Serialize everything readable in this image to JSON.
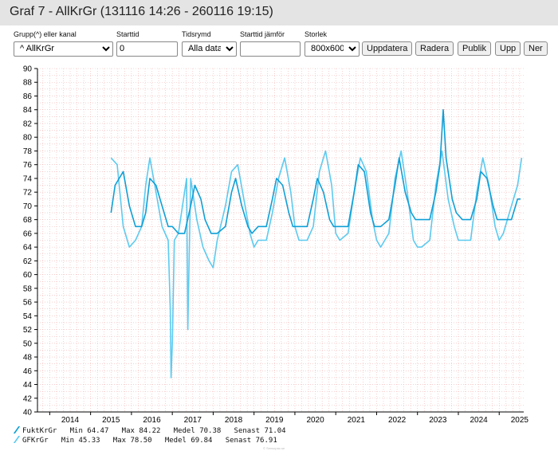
{
  "window": {
    "title": "Graf 7 - AllKrGr (131116 14:26 - 260116 19:15)"
  },
  "controls": {
    "group_label": "Grupp(^) eller kanal",
    "group_value": "^ AllKrGr",
    "start_label": "Starttid",
    "start_value": "0",
    "range_label": "Tidsrymd",
    "range_value": "Alla data",
    "compare_label": "Starttid jämför",
    "compare_value": "",
    "size_label": "Storlek",
    "size_value": "800x600",
    "update_button": "Uppdatera",
    "delete_button": "Radera",
    "publish_button": "Publik",
    "up_button": "Upp",
    "down_button": "Ner"
  },
  "colors": {
    "series1": "#0f9fd6",
    "series2": "#5ccaf0",
    "grid": "#f2b3b3",
    "axis": "#000000"
  },
  "footnote": "© Sensopac.se",
  "chart_data": {
    "type": "line",
    "title": "",
    "xlabel": "",
    "ylabel": "",
    "ylim": [
      40,
      90
    ],
    "y_ticks": [
      "40",
      "42",
      "44",
      "46",
      "48",
      "50",
      "52",
      "54",
      "56",
      "58",
      "60",
      "62",
      "64",
      "66",
      "68",
      "70",
      "72",
      "74",
      "76",
      "78",
      "80",
      "82",
      "84",
      "86",
      "88",
      "90"
    ],
    "xlim": [
      2013.7,
      2025.6
    ],
    "x_ticks": [
      "2014",
      "2015",
      "2016",
      "2017",
      "2018",
      "2019",
      "2020",
      "2021",
      "2022",
      "2023",
      "2024",
      "2025"
    ],
    "grid": true,
    "legend_position": "bottom-left",
    "series": [
      {
        "name": "FuktKrGr",
        "stats": {
          "min": "64.47",
          "max": "84.22",
          "mean": "70.38",
          "latest": "71.04"
        },
        "x": [
          2015.5,
          2015.6,
          2015.8,
          2015.95,
          2016.1,
          2016.25,
          2016.35,
          2016.45,
          2016.6,
          2016.75,
          2016.9,
          2017.0,
          2017.15,
          2017.3,
          2017.45,
          2017.55,
          2017.7,
          2017.8,
          2017.95,
          2018.1,
          2018.3,
          2018.45,
          2018.55,
          2018.7,
          2018.85,
          2018.95,
          2019.1,
          2019.3,
          2019.45,
          2019.55,
          2019.7,
          2019.85,
          2019.95,
          2020.1,
          2020.3,
          2020.45,
          2020.55,
          2020.7,
          2020.85,
          2020.95,
          2021.1,
          2021.3,
          2021.45,
          2021.55,
          2021.7,
          2021.85,
          2021.95,
          2022.1,
          2022.3,
          2022.45,
          2022.55,
          2022.7,
          2022.85,
          2022.95,
          2023.1,
          2023.3,
          2023.45,
          2023.55,
          2023.63,
          2023.7,
          2023.85,
          2023.95,
          2024.1,
          2024.3,
          2024.45,
          2024.55,
          2024.7,
          2024.85,
          2024.95,
          2025.1,
          2025.3,
          2025.45,
          2025.52
        ],
        "y": [
          69,
          73,
          75,
          70,
          67,
          67,
          69,
          74,
          73,
          70,
          67,
          67,
          66,
          66,
          70,
          73,
          71,
          68,
          66,
          66,
          67,
          72,
          74,
          70,
          67,
          66,
          67,
          67,
          71,
          74,
          73,
          69,
          67,
          67,
          67,
          71,
          74,
          72,
          68,
          67,
          67,
          67,
          72,
          76,
          75,
          69,
          67,
          67,
          68,
          73,
          77,
          72,
          69,
          68,
          68,
          68,
          72,
          76,
          84,
          77,
          71,
          69,
          68,
          68,
          71,
          75,
          74,
          70,
          68,
          68,
          68,
          71,
          71
        ]
      },
      {
        "name": "GFKrGr",
        "stats": {
          "min": "45.33",
          "max": "78.50",
          "mean": "69.84",
          "latest": "76.91"
        },
        "x": [
          2015.5,
          2015.65,
          2015.8,
          2015.95,
          2016.1,
          2016.25,
          2016.35,
          2016.45,
          2016.6,
          2016.75,
          2016.9,
          2016.95,
          2016.97,
          2017.0,
          2017.05,
          2017.15,
          2017.3,
          2017.35,
          2017.38,
          2017.45,
          2017.6,
          2017.75,
          2017.9,
          2018.0,
          2018.1,
          2018.3,
          2018.45,
          2018.6,
          2018.75,
          2018.9,
          2019.0,
          2019.1,
          2019.3,
          2019.45,
          2019.6,
          2019.75,
          2019.9,
          2020.0,
          2020.1,
          2020.3,
          2020.45,
          2020.6,
          2020.75,
          2020.9,
          2021.0,
          2021.1,
          2021.3,
          2021.45,
          2021.6,
          2021.75,
          2021.9,
          2022.0,
          2022.1,
          2022.3,
          2022.45,
          2022.6,
          2022.75,
          2022.9,
          2023.0,
          2023.1,
          2023.3,
          2023.45,
          2023.6,
          2023.75,
          2023.9,
          2024.0,
          2024.1,
          2024.3,
          2024.45,
          2024.6,
          2024.75,
          2024.9,
          2025.0,
          2025.1,
          2025.3,
          2025.45,
          2025.55
        ],
        "y": [
          77,
          76,
          67,
          64,
          65,
          67,
          73,
          77,
          72,
          67,
          65,
          55,
          45,
          50,
          65,
          66,
          72,
          74,
          52,
          74,
          68,
          64,
          62,
          61,
          65,
          70,
          75,
          76,
          71,
          66,
          64,
          65,
          65,
          69,
          74,
          77,
          72,
          67,
          65,
          65,
          67,
          75,
          78,
          73,
          66,
          65,
          66,
          72,
          77,
          75,
          68,
          65,
          64,
          66,
          74,
          78,
          72,
          65,
          64,
          64,
          65,
          73,
          78,
          71,
          67,
          65,
          65,
          65,
          72,
          77,
          73,
          67,
          65,
          66,
          70,
          73,
          77
        ]
      }
    ]
  }
}
